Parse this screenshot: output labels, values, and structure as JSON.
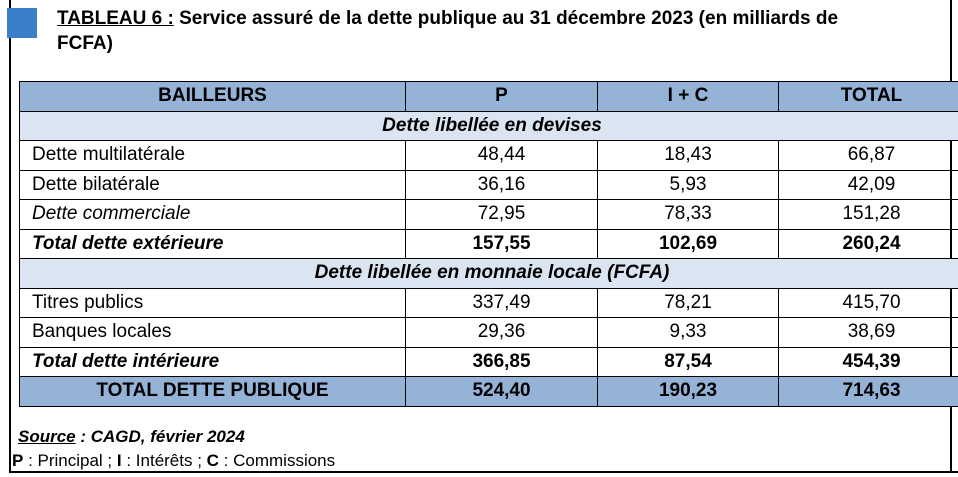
{
  "header": {
    "number": "TABLEAU 6 :",
    "title": "Service assuré de la dette publique au 31 décembre 2023 (en milliards de",
    "title_cont": "FCFA)"
  },
  "table": {
    "columns": [
      "BAILLEURS",
      "P",
      "I + C",
      "TOTAL"
    ],
    "sections": [
      {
        "title": "Dette libellée en devises",
        "rows": [
          [
            "Dette multilatérale",
            "48,44",
            "18,43",
            "66,87"
          ],
          [
            "Dette bilatérale",
            "36,16",
            "5,93",
            "42,09"
          ],
          [
            "Dette commerciale",
            "72,95",
            "78,33",
            "151,28"
          ],
          [
            "Total dette extérieure",
            "157,55",
            "102,69",
            "260,24"
          ]
        ]
      },
      {
        "title": "Dette libellée en monnaie locale (FCFA)",
        "rows": [
          [
            "Titres publics",
            "337,49",
            "78,21",
            "415,70"
          ],
          [
            "Banques locales",
            "29,36",
            "9,33",
            "38,69"
          ],
          [
            "Total dette intérieure",
            "366,85",
            "87,54",
            "454,39"
          ]
        ]
      }
    ],
    "total": [
      "TOTAL DETTE PUBLIQUE",
      "524,40",
      "190,23",
      "714,63"
    ]
  },
  "source": {
    "label": "Source",
    "text": " : CAGD, février 2024"
  },
  "legend": [
    {
      "key": "P",
      "text": " : Principal ; "
    },
    {
      "key": "I",
      "text": " : Intérêts ; "
    },
    {
      "key": "C",
      "text": " : Commissions"
    }
  ]
}
